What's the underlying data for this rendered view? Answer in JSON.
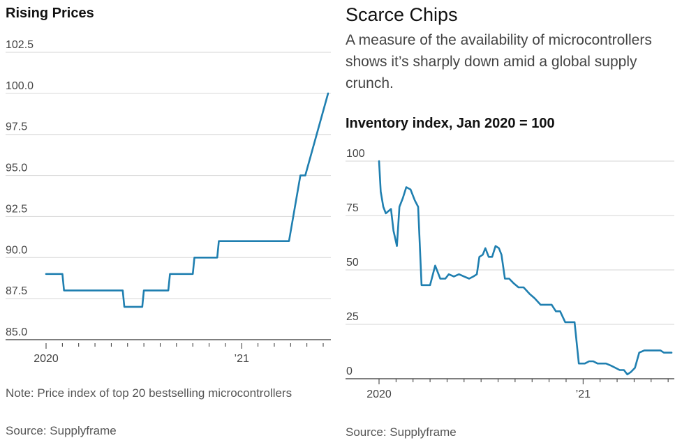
{
  "chart_data": [
    {
      "type": "line",
      "title": "Rising Prices",
      "y_ticks": [
        "102.5",
        "100.0",
        "97.5",
        "95.0",
        "92.5",
        "90.0",
        "87.5",
        "85.0"
      ],
      "y_tick_values": [
        102.5,
        100,
        97.5,
        95,
        92.5,
        90,
        87.5,
        85
      ],
      "ylim": [
        85,
        102.5
      ],
      "x_tick_labels": [
        "2020",
        "’21"
      ],
      "x_tick_values": [
        0,
        12
      ],
      "xlim": [
        0,
        17.3
      ],
      "grid": "horizontal",
      "color": "#1f7fb0",
      "series": [
        {
          "x": [
            0,
            1,
            1.1,
            4.7,
            4.8,
            5.9,
            6,
            7.5,
            7.6,
            9,
            9.1,
            10.5,
            10.6,
            12,
            12.1,
            14.9,
            15.6,
            15.9,
            17.3
          ],
          "y": [
            89,
            89,
            88,
            88,
            87,
            87,
            88,
            88,
            89,
            89,
            90,
            90,
            91,
            91,
            91,
            91,
            95,
            95,
            100
          ]
        }
      ],
      "note": "Note: Price index of top 20 bestselling microcontrollers",
      "source": "Source: Supplyframe"
    },
    {
      "type": "line",
      "title": "Scarce Chips",
      "subtitle": "A measure of the availability of microcontrollers shows it’s sharply down amid a global supply crunch.",
      "ylabel": "Inventory index, Jan 2020 = 100",
      "y_ticks": [
        "100",
        "75",
        "50",
        "25",
        "0"
      ],
      "y_tick_values": [
        100,
        75,
        50,
        25,
        0
      ],
      "ylim": [
        0,
        100
      ],
      "x_tick_labels": [
        "2020",
        "’21"
      ],
      "x_tick_values": [
        0,
        12
      ],
      "xlim": [
        0,
        17.2
      ],
      "grid": "horizontal",
      "color": "#1f7fb0",
      "series": [
        {
          "x": [
            0,
            0.1,
            0.25,
            0.4,
            0.55,
            0.7,
            0.85,
            1.05,
            1.2,
            1.4,
            1.6,
            1.85,
            2.1,
            2.3,
            2.5,
            2.8,
            3.0,
            3.3,
            3.6,
            3.9,
            4.1,
            4.4,
            4.7,
            5.0,
            5.3,
            5.55,
            5.75,
            5.9,
            6.1,
            6.25,
            6.45,
            6.65,
            6.85,
            7.05,
            7.2,
            7.4,
            7.65,
            7.9,
            8.2,
            8.5,
            8.85,
            9.15,
            9.5,
            9.85,
            10.15,
            10.4,
            10.65,
            10.95,
            11.2,
            11.5,
            11.75,
            12.1,
            12.35,
            12.6,
            12.85,
            13.05,
            13.35,
            13.65,
            13.9,
            14.15,
            14.4,
            14.6,
            14.8,
            15.05,
            15.3,
            15.6,
            15.8,
            16.0,
            16.3,
            16.55,
            16.75,
            17.0,
            17.2
          ],
          "y": [
            100,
            86,
            79,
            76,
            77,
            78,
            68,
            61,
            79,
            83,
            88,
            87,
            82,
            79,
            43,
            43,
            43,
            52,
            46,
            46,
            48,
            47,
            48,
            47,
            46,
            47,
            48,
            56,
            57,
            60,
            56,
            56,
            61,
            60,
            57,
            46,
            46,
            44,
            42,
            42,
            39,
            37,
            34,
            34,
            34,
            31,
            31,
            26,
            26,
            26,
            7,
            7,
            8,
            8,
            7,
            7,
            7,
            6,
            5,
            4,
            4,
            2,
            3,
            5,
            12,
            13,
            13,
            13,
            13,
            13,
            12,
            12,
            12
          ]
        }
      ],
      "source": "Source: Supplyframe"
    }
  ]
}
